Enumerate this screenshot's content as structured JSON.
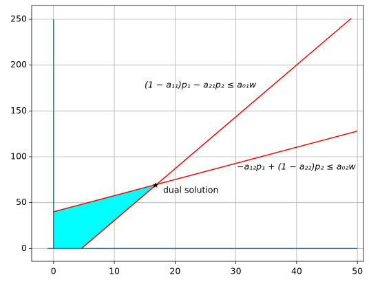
{
  "chart_data": {
    "type": "line",
    "xlim": [
      -3.6,
      51
    ],
    "ylim": [
      -14,
      265
    ],
    "xticks": [
      0,
      10,
      20,
      30,
      40,
      50
    ],
    "yticks": [
      0,
      50,
      100,
      150,
      200,
      250
    ],
    "grid": true,
    "series": [
      {
        "color": "#1f77b4",
        "x": [
          0,
          0
        ],
        "values": [
          0,
          250
        ]
      },
      {
        "color": "#1f77b4",
        "x": [
          -1,
          50
        ],
        "values": [
          0,
          0
        ]
      },
      {
        "color": "#ff0000",
        "x": [
          4.6,
          49
        ],
        "values": [
          0,
          251
        ]
      },
      {
        "color": "#ff0000",
        "x": [
          0,
          50
        ],
        "values": [
          40,
          128
        ]
      }
    ],
    "fill_region": {
      "color": "#00ffff",
      "x": [
        0,
        0,
        16.8,
        4.6
      ],
      "values": [
        0,
        40,
        69.6,
        0
      ]
    },
    "point": {
      "color": "#000000",
      "x": 16.8,
      "value": 69
    },
    "annotations": [
      "(1 − a₁₁)p₁ − a₂₁p₂ ≤ a₀₁w",
      "−a₁₂p₁ + (1 − a₂₂)p₂ ≤ a₀₂w",
      "dual solution"
    ]
  }
}
